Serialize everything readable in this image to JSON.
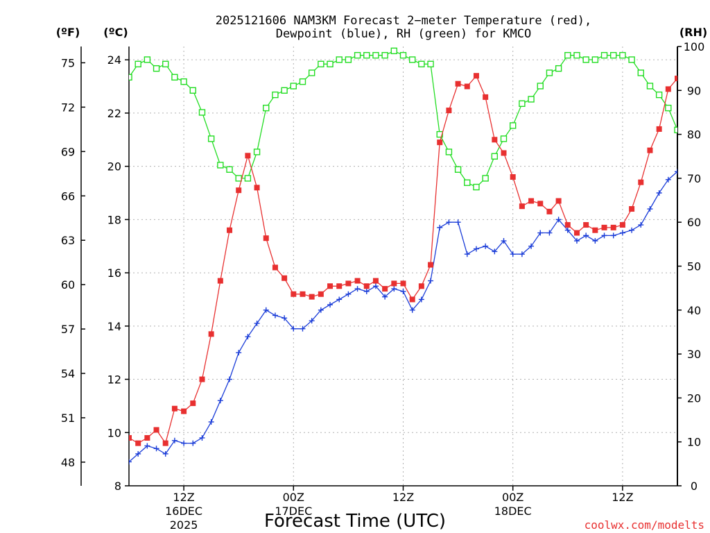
{
  "chart_data": {
    "type": "line",
    "title_lines": [
      "2025121606 NAM3KM Forecast 2−meter Temperature (red),",
      "Dewpoint (blue), RH (green) for KMCO"
    ],
    "xlabel": "Forecast Time (UTC)",
    "credit": "coolwx.com/modelts",
    "units": {
      "fahrenheit": "(ºF)",
      "celsius": "(ºC)",
      "rh": "(RH)"
    },
    "x_range_hours": [
      0,
      60
    ],
    "y_celsius_range": [
      8,
      24.5
    ],
    "y_rh_range": [
      0,
      100
    ],
    "celsius_ticks": [
      "8",
      "10",
      "12",
      "14",
      "16",
      "18",
      "20",
      "22",
      "24"
    ],
    "fahrenheit_ticks": [
      "48",
      "51",
      "54",
      "57",
      "60",
      "63",
      "66",
      "69",
      "72",
      "75"
    ],
    "rh_ticks": [
      "0",
      "10",
      "20",
      "30",
      "40",
      "50",
      "60",
      "70",
      "80",
      "90",
      "100"
    ],
    "x_ticks": [
      {
        "hour": 6,
        "time": "12Z",
        "date": "16DEC",
        "year": "2025"
      },
      {
        "hour": 18,
        "time": "00Z",
        "date": "17DEC",
        "year": ""
      },
      {
        "hour": 30,
        "time": "12Z",
        "date": "",
        "year": ""
      },
      {
        "hour": 42,
        "time": "00Z",
        "date": "18DEC",
        "year": ""
      },
      {
        "hour": 54,
        "time": "12Z",
        "date": "",
        "year": ""
      }
    ],
    "series": [
      {
        "name": "Temperature",
        "units": "C",
        "color": "#e83030",
        "marker": "filled-square",
        "values": [
          9.8,
          9.6,
          9.8,
          10.1,
          9.6,
          10.9,
          10.8,
          11.1,
          12.0,
          13.7,
          15.7,
          17.6,
          19.1,
          20.4,
          19.2,
          17.3,
          16.2,
          15.8,
          15.2,
          15.2,
          15.1,
          15.2,
          15.5,
          15.5,
          15.6,
          15.7,
          15.5,
          15.7,
          15.4,
          15.6,
          15.6,
          15.0,
          15.5,
          16.3,
          20.9,
          22.1,
          23.1,
          23.0,
          23.4,
          22.6,
          21.0,
          20.5,
          19.6,
          18.5,
          18.7,
          18.6,
          18.3,
          18.7,
          17.8,
          17.5,
          17.8,
          17.6,
          17.7,
          17.7,
          17.8,
          18.4,
          19.4,
          20.6,
          21.4,
          22.9,
          23.3
        ]
      },
      {
        "name": "Dewpoint",
        "units": "C",
        "color": "#1a3cd8",
        "marker": "plus",
        "values": [
          8.9,
          9.2,
          9.5,
          9.4,
          9.2,
          9.7,
          9.6,
          9.6,
          9.8,
          10.4,
          11.2,
          12.0,
          13.0,
          13.6,
          14.1,
          14.6,
          14.4,
          14.3,
          13.9,
          13.9,
          14.2,
          14.6,
          14.8,
          15.0,
          15.2,
          15.4,
          15.3,
          15.5,
          15.1,
          15.4,
          15.3,
          14.6,
          15.0,
          15.7,
          17.7,
          17.9,
          17.9,
          16.7,
          16.9,
          17.0,
          16.8,
          17.2,
          16.7,
          16.7,
          17.0,
          17.5,
          17.5,
          18.0,
          17.6,
          17.2,
          17.4,
          17.2,
          17.4,
          17.4,
          17.5,
          17.6,
          17.8,
          18.4,
          19.0,
          19.5,
          19.8
        ]
      },
      {
        "name": "RH",
        "units": "%",
        "color": "#22dd22",
        "marker": "open-square",
        "values": [
          93,
          96,
          97,
          95,
          96,
          93,
          92,
          90,
          85,
          79,
          73,
          72,
          70,
          70,
          76,
          86,
          89,
          90,
          91,
          92,
          94,
          96,
          96,
          97,
          97,
          98,
          98,
          98,
          98,
          99,
          98,
          97,
          96,
          96,
          80,
          76,
          72,
          69,
          68,
          70,
          75,
          79,
          82,
          87,
          88,
          91,
          94,
          95,
          98,
          98,
          97,
          97,
          98,
          98,
          98,
          97,
          94,
          91,
          89,
          86,
          81
        ]
      }
    ]
  }
}
